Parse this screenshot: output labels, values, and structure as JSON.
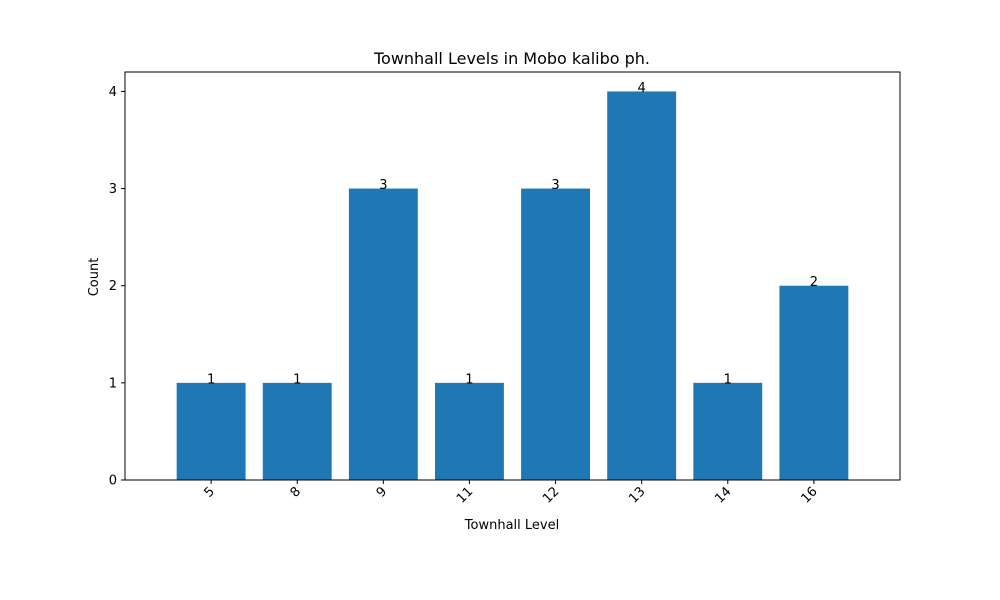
{
  "chart_data": {
    "type": "bar",
    "title": "Townhall Levels in Mobo kalibo ph.",
    "xlabel": "Townhall Level",
    "ylabel": "Count",
    "categories": [
      "5",
      "8",
      "9",
      "11",
      "12",
      "13",
      "14",
      "16"
    ],
    "values": [
      1,
      1,
      3,
      1,
      3,
      4,
      1,
      2
    ],
    "ylim": [
      0,
      4.2
    ],
    "yticks": [
      0,
      1,
      2,
      3,
      4
    ],
    "grid": false,
    "bar_color": "#1f77b4",
    "data_labels": true
  }
}
